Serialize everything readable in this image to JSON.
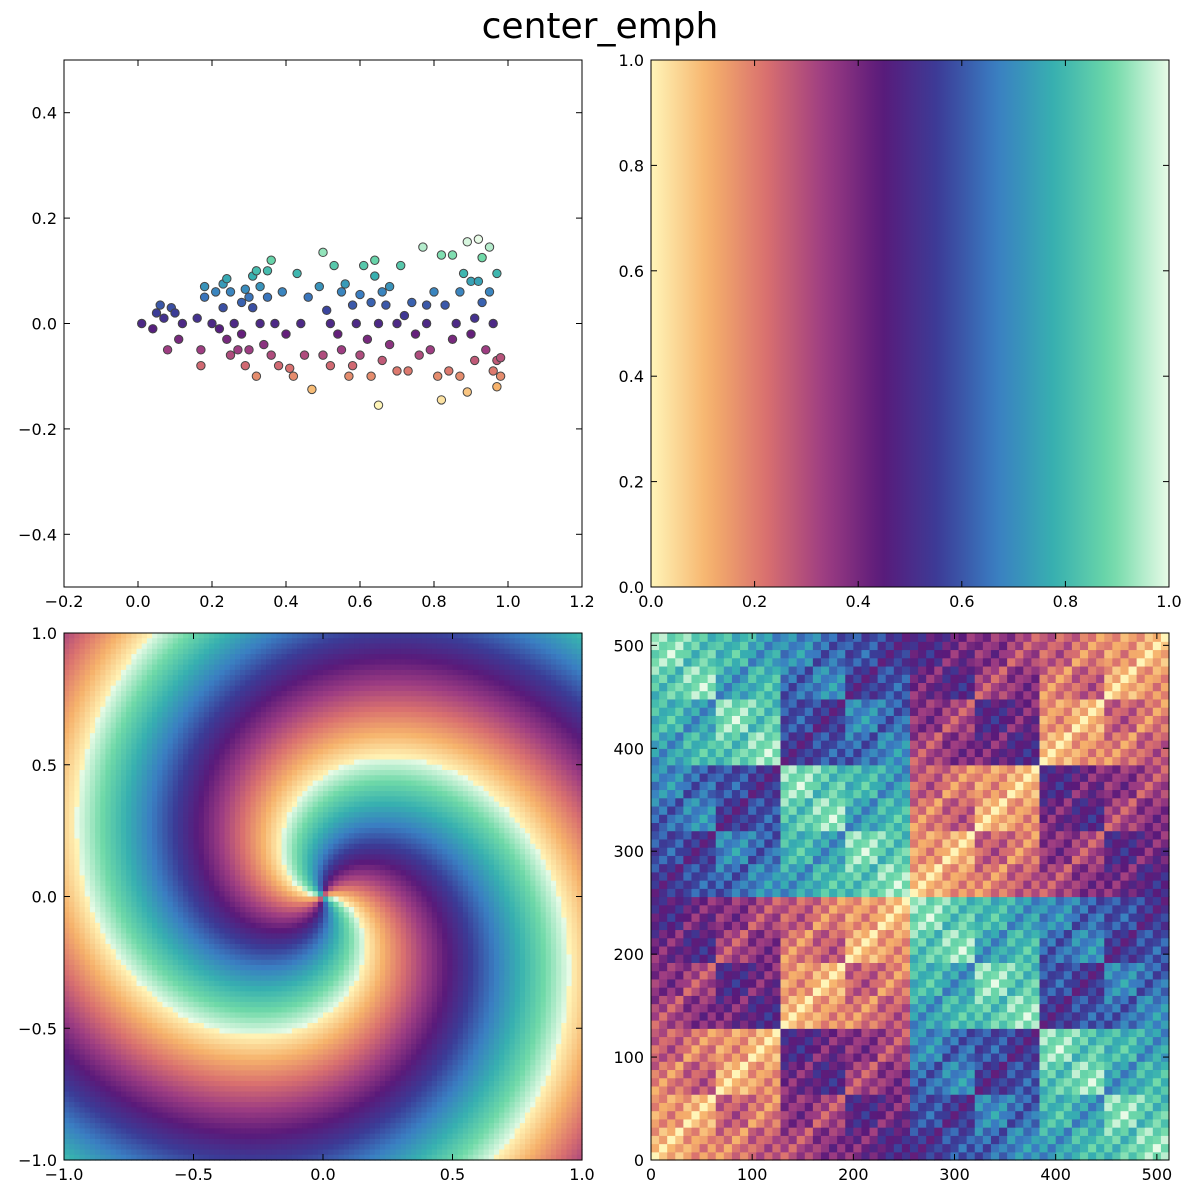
{
  "figure": {
    "title": "center_emph",
    "colormap_stops": [
      "#fff5b8",
      "#f6b26b",
      "#d9706f",
      "#9e3d82",
      "#5a1a7a",
      "#3b3c97",
      "#3a7ec2",
      "#37b0b0",
      "#6fd9a8",
      "#e8fbe7"
    ]
  },
  "chart_data": [
    {
      "type": "scatter",
      "panel": "top-left",
      "xlim": [
        -0.2,
        1.2
      ],
      "ylim": [
        -0.5,
        0.5
      ],
      "xticks": [
        -0.2,
        0.0,
        0.2,
        0.4,
        0.6,
        0.8,
        1.0,
        1.2
      ],
      "yticks": [
        -0.4,
        -0.2,
        0.0,
        0.2,
        0.4
      ],
      "xtick_labels": [
        "−0.2",
        "0.0",
        "0.2",
        "0.4",
        "0.6",
        "0.8",
        "1.0",
        "1.2"
      ],
      "ytick_labels": [
        "−0.4",
        "−0.2",
        "0.0",
        "0.2",
        "0.4"
      ],
      "color_by": "y",
      "points": [
        [
          0.01,
          0.0
        ],
        [
          0.04,
          -0.01
        ],
        [
          0.05,
          0.02
        ],
        [
          0.06,
          0.035
        ],
        [
          0.07,
          0.01
        ],
        [
          0.08,
          -0.05
        ],
        [
          0.09,
          0.03
        ],
        [
          0.1,
          0.02
        ],
        [
          0.11,
          -0.03
        ],
        [
          0.12,
          0.0
        ],
        [
          0.16,
          0.01
        ],
        [
          0.17,
          -0.05
        ],
        [
          0.17,
          -0.08
        ],
        [
          0.18,
          0.07
        ],
        [
          0.18,
          0.05
        ],
        [
          0.2,
          0.0
        ],
        [
          0.21,
          0.06
        ],
        [
          0.22,
          -0.01
        ],
        [
          0.23,
          0.03
        ],
        [
          0.23,
          0.075
        ],
        [
          0.24,
          0.085
        ],
        [
          0.24,
          -0.03
        ],
        [
          0.25,
          0.06
        ],
        [
          0.25,
          -0.06
        ],
        [
          0.26,
          0.0
        ],
        [
          0.27,
          -0.05
        ],
        [
          0.28,
          0.04
        ],
        [
          0.28,
          -0.02
        ],
        [
          0.29,
          0.065
        ],
        [
          0.29,
          -0.08
        ],
        [
          0.3,
          0.05
        ],
        [
          0.3,
          -0.05
        ],
        [
          0.31,
          0.09
        ],
        [
          0.31,
          0.03
        ],
        [
          0.32,
          0.1
        ],
        [
          0.32,
          -0.1
        ],
        [
          0.33,
          0.07
        ],
        [
          0.33,
          0.0
        ],
        [
          0.34,
          -0.04
        ],
        [
          0.35,
          0.05
        ],
        [
          0.35,
          0.1
        ],
        [
          0.36,
          0.12
        ],
        [
          0.36,
          -0.06
        ],
        [
          0.37,
          0.0
        ],
        [
          0.38,
          -0.08
        ],
        [
          0.39,
          0.06
        ],
        [
          0.4,
          -0.02
        ],
        [
          0.41,
          -0.085
        ],
        [
          0.42,
          -0.1
        ],
        [
          0.43,
          0.095
        ],
        [
          0.44,
          0.0
        ],
        [
          0.45,
          -0.06
        ],
        [
          0.46,
          0.05
        ],
        [
          0.47,
          -0.125
        ],
        [
          0.49,
          0.07
        ],
        [
          0.5,
          -0.06
        ],
        [
          0.5,
          0.135
        ],
        [
          0.51,
          0.025
        ],
        [
          0.52,
          0.0
        ],
        [
          0.52,
          -0.08
        ],
        [
          0.53,
          0.11
        ],
        [
          0.54,
          -0.02
        ],
        [
          0.55,
          0.06
        ],
        [
          0.55,
          -0.05
        ],
        [
          0.56,
          0.075
        ],
        [
          0.57,
          -0.1
        ],
        [
          0.58,
          0.035
        ],
        [
          0.58,
          -0.08
        ],
        [
          0.59,
          0.0
        ],
        [
          0.6,
          0.055
        ],
        [
          0.6,
          -0.06
        ],
        [
          0.61,
          0.11
        ],
        [
          0.62,
          -0.03
        ],
        [
          0.63,
          0.04
        ],
        [
          0.63,
          -0.1
        ],
        [
          0.64,
          0.09
        ],
        [
          0.64,
          0.12
        ],
        [
          0.65,
          -0.155
        ],
        [
          0.65,
          0.0
        ],
        [
          0.66,
          -0.07
        ],
        [
          0.66,
          0.06
        ],
        [
          0.67,
          0.035
        ],
        [
          0.68,
          0.07
        ],
        [
          0.68,
          -0.04
        ],
        [
          0.7,
          0.0
        ],
        [
          0.7,
          -0.09
        ],
        [
          0.71,
          0.11
        ],
        [
          0.72,
          0.015
        ],
        [
          0.73,
          -0.09
        ],
        [
          0.74,
          0.04
        ],
        [
          0.75,
          -0.02
        ],
        [
          0.76,
          -0.06
        ],
        [
          0.77,
          0.145
        ],
        [
          0.78,
          0.035
        ],
        [
          0.78,
          0.0
        ],
        [
          0.79,
          -0.05
        ],
        [
          0.8,
          0.06
        ],
        [
          0.81,
          -0.1
        ],
        [
          0.82,
          0.13
        ],
        [
          0.82,
          -0.145
        ],
        [
          0.83,
          0.035
        ],
        [
          0.84,
          -0.09
        ],
        [
          0.85,
          0.13
        ],
        [
          0.85,
          -0.03
        ],
        [
          0.86,
          0.0
        ],
        [
          0.87,
          0.06
        ],
        [
          0.87,
          -0.1
        ],
        [
          0.88,
          0.095
        ],
        [
          0.89,
          0.155
        ],
        [
          0.89,
          -0.13
        ],
        [
          0.9,
          0.08
        ],
        [
          0.9,
          -0.02
        ],
        [
          0.91,
          0.01
        ],
        [
          0.91,
          -0.07
        ],
        [
          0.92,
          0.16
        ],
        [
          0.92,
          0.08
        ],
        [
          0.93,
          0.04
        ],
        [
          0.93,
          0.125
        ],
        [
          0.94,
          -0.05
        ],
        [
          0.95,
          0.145
        ],
        [
          0.95,
          0.06
        ],
        [
          0.96,
          -0.09
        ],
        [
          0.96,
          0.0
        ],
        [
          0.97,
          0.095
        ],
        [
          0.97,
          -0.07
        ],
        [
          0.97,
          -0.12
        ],
        [
          0.98,
          -0.1
        ],
        [
          0.98,
          -0.065
        ]
      ]
    },
    {
      "type": "heatmap",
      "panel": "top-right",
      "description_kind": "horizontal-gradient",
      "xlim": [
        0.0,
        1.0
      ],
      "ylim": [
        0.0,
        1.0
      ],
      "xticks": [
        0.0,
        0.2,
        0.4,
        0.6,
        0.8,
        1.0
      ],
      "yticks": [
        0.0,
        0.2,
        0.4,
        0.6,
        0.8,
        1.0
      ],
      "xtick_labels": [
        "0.0",
        "0.2",
        "0.4",
        "0.6",
        "0.8",
        "1.0"
      ],
      "ytick_labels": [
        "0.0",
        "0.2",
        "0.4",
        "0.6",
        "0.8",
        "1.0"
      ]
    },
    {
      "type": "heatmap",
      "panel": "bottom-left",
      "description_kind": "spiral",
      "xlim": [
        -1.0,
        1.0
      ],
      "ylim": [
        -1.0,
        1.0
      ],
      "xticks": [
        -1.0,
        -0.5,
        0.0,
        0.5,
        1.0
      ],
      "yticks": [
        -1.0,
        -0.5,
        0.0,
        0.5,
        1.0
      ],
      "xtick_labels": [
        "−1.0",
        "−0.5",
        "0.0",
        "0.5",
        "1.0"
      ],
      "ytick_labels": [
        "−1.0",
        "−0.5",
        "0.0",
        "0.5",
        "1.0"
      ],
      "grid_size": 100
    },
    {
      "type": "heatmap",
      "panel": "bottom-right",
      "description_kind": "fractal",
      "xlim": [
        0,
        512
      ],
      "ylim": [
        0,
        512
      ],
      "xticks": [
        0,
        100,
        200,
        300,
        400,
        500
      ],
      "yticks": [
        0,
        100,
        200,
        300,
        400,
        500
      ],
      "xtick_labels": [
        "0",
        "100",
        "200",
        "300",
        "400",
        "500"
      ],
      "ytick_labels": [
        "0",
        "100",
        "200",
        "300",
        "400",
        "500"
      ],
      "grid_size": 64
    }
  ]
}
